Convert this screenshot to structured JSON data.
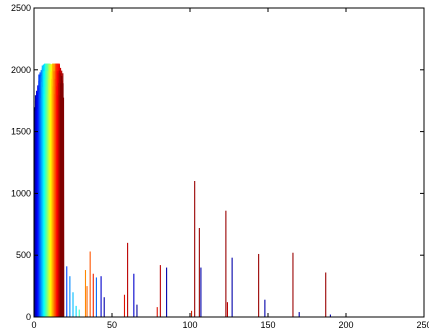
{
  "chart_data": {
    "type": "line",
    "title": "",
    "xlabel": "",
    "ylabel": "",
    "xlim": [
      0,
      250
    ],
    "ylim": [
      0,
      2500
    ],
    "xticks": [
      0,
      50,
      100,
      150,
      200,
      250
    ],
    "yticks": [
      0,
      500,
      1000,
      1500,
      2000,
      2500
    ],
    "xtick_labels": [
      "0",
      "50",
      "100",
      "150",
      "200",
      "250"
    ],
    "ytick_labels": [
      "0",
      "500",
      "1000",
      "1500",
      "2000",
      "2500"
    ],
    "grid": false,
    "legend": "none",
    "colormap": "jet",
    "series_count": 40,
    "cluster": {
      "description": "dense jet-colored histogram cluster at low intensity",
      "x": [
        1,
        2,
        3,
        4,
        5,
        6,
        7,
        8,
        9,
        10,
        11,
        12,
        13,
        14,
        15,
        16,
        17,
        18
      ],
      "peak_values": [
        1750,
        1800,
        1900,
        1960,
        2000,
        2030,
        2050,
        2050,
        2050,
        2050,
        2040,
        2050,
        2050,
        2050,
        2050,
        2050,
        2000,
        1950
      ]
    },
    "spikes": [
      {
        "x": 21,
        "y": 410,
        "color": "#0044ff"
      },
      {
        "x": 23,
        "y": 330,
        "color": "#0088ff"
      },
      {
        "x": 25,
        "y": 200,
        "color": "#00bbff"
      },
      {
        "x": 27,
        "y": 90,
        "color": "#00ddff"
      },
      {
        "x": 29,
        "y": 60,
        "color": "#40ffc0"
      },
      {
        "x": 33,
        "y": 380,
        "color": "#ff8800"
      },
      {
        "x": 34,
        "y": 250,
        "color": "#ff6600"
      },
      {
        "x": 36,
        "y": 530,
        "color": "#ff5500"
      },
      {
        "x": 38,
        "y": 350,
        "color": "#ee2200"
      },
      {
        "x": 40,
        "y": 320,
        "color": "#0066ff"
      },
      {
        "x": 43,
        "y": 330,
        "color": "#0000cc"
      },
      {
        "x": 45,
        "y": 160,
        "color": "#0000aa"
      },
      {
        "x": 58,
        "y": 180,
        "color": "#dd1100"
      },
      {
        "x": 60,
        "y": 600,
        "color": "#bb0000"
      },
      {
        "x": 64,
        "y": 350,
        "color": "#0000cc"
      },
      {
        "x": 66,
        "y": 100,
        "color": "#000099"
      },
      {
        "x": 79,
        "y": 80,
        "color": "#dd1100"
      },
      {
        "x": 81,
        "y": 420,
        "color": "#bb0000"
      },
      {
        "x": 85,
        "y": 400,
        "color": "#0000aa"
      },
      {
        "x": 101,
        "y": 50,
        "color": "#cc2200"
      },
      {
        "x": 103,
        "y": 1100,
        "color": "#990000"
      },
      {
        "x": 106,
        "y": 720,
        "color": "#990000"
      },
      {
        "x": 107,
        "y": 400,
        "color": "#0000aa"
      },
      {
        "x": 123,
        "y": 860,
        "color": "#990000"
      },
      {
        "x": 124,
        "y": 120,
        "color": "#bb0000"
      },
      {
        "x": 127,
        "y": 480,
        "color": "#0000aa"
      },
      {
        "x": 144,
        "y": 510,
        "color": "#990000"
      },
      {
        "x": 148,
        "y": 140,
        "color": "#0000aa"
      },
      {
        "x": 166,
        "y": 520,
        "color": "#990000"
      },
      {
        "x": 170,
        "y": 40,
        "color": "#0000aa"
      },
      {
        "x": 187,
        "y": 360,
        "color": "#990000"
      },
      {
        "x": 190,
        "y": 20,
        "color": "#0000aa"
      }
    ]
  }
}
